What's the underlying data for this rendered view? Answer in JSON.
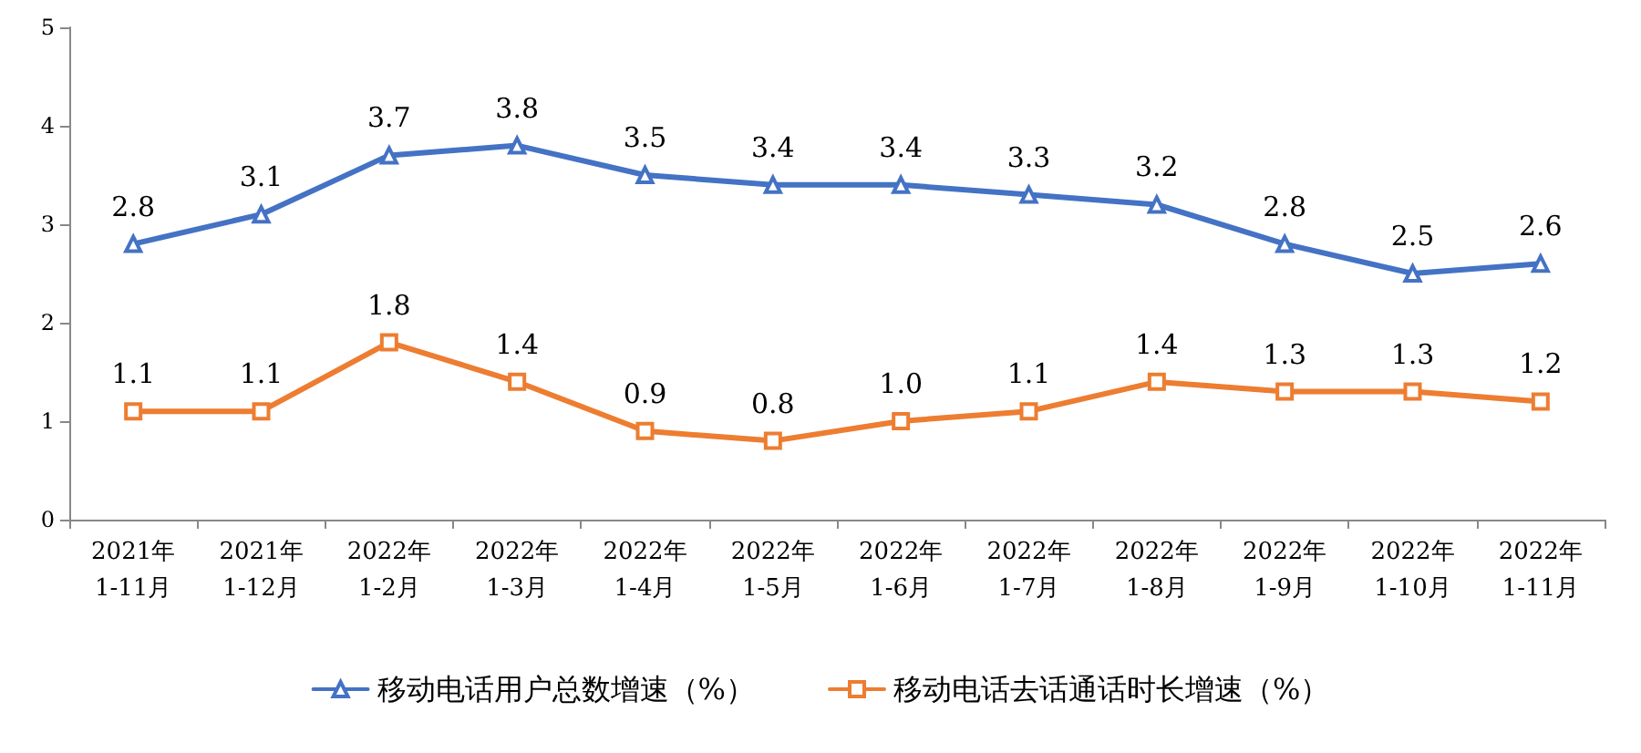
{
  "chart_data": {
    "type": "line",
    "categories": [
      "2021年\n1-11月",
      "2021年\n1-12月",
      "2022年\n1-2月",
      "2022年\n1-3月",
      "2022年\n1-4月",
      "2022年\n1-5月",
      "2022年\n1-6月",
      "2022年\n1-7月",
      "2022年\n1-8月",
      "2022年\n1-9月",
      "2022年\n1-10月",
      "2022年\n1-11月"
    ],
    "series": [
      {
        "name": "移动电话用户总数增速（%）",
        "color": "#4472c4",
        "marker": "triangle",
        "values": [
          2.8,
          3.1,
          3.7,
          3.8,
          3.5,
          3.4,
          3.4,
          3.3,
          3.2,
          2.8,
          2.5,
          2.6
        ],
        "value_labels": [
          "2.8",
          "3.1",
          "3.7",
          "3.8",
          "3.5",
          "3.4",
          "3.4",
          "3.3",
          "3.2",
          "2.8",
          "2.5",
          "2.6"
        ]
      },
      {
        "name": "移动电话去话通话时长增速（%）",
        "color": "#ed7d31",
        "marker": "square",
        "values": [
          1.1,
          1.1,
          1.8,
          1.4,
          0.9,
          0.8,
          1.0,
          1.1,
          1.4,
          1.3,
          1.3,
          1.2
        ],
        "value_labels": [
          "1.1",
          "1.1",
          "1.8",
          "1.4",
          "0.9",
          "0.8",
          "1.0",
          "1.1",
          "1.4",
          "1.3",
          "1.3",
          "1.2"
        ]
      }
    ],
    "ylim": [
      0,
      5
    ],
    "yticks": [
      0,
      1,
      2,
      3,
      4,
      5
    ],
    "grid": false,
    "legend": "bottom",
    "line_style": "solid"
  }
}
